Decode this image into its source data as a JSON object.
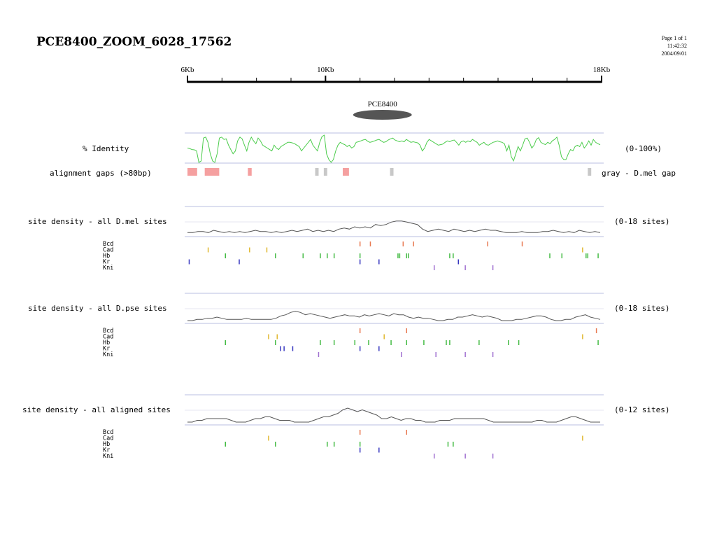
{
  "header": {
    "title": "PCE8400_ZOOM_6028_17562",
    "page": "Page 1 of 1",
    "time": "11:42:32",
    "date": "2004/09/01"
  },
  "scale": {
    "start_kb": 6,
    "end_kb": 18,
    "labels": [
      "6Kb",
      "10Kb",
      "18Kb"
    ],
    "label_positions_kb": [
      6,
      10,
      18
    ],
    "minor_ticks_kb": [
      7,
      8,
      9,
      10,
      11,
      12,
      13,
      14,
      15,
      16,
      17
    ]
  },
  "gene": {
    "name": "PCE8400",
    "start_kb": 10.8,
    "end_kb": 12.5
  },
  "identity": {
    "label": "% Identity",
    "range": "(0-100%)",
    "values": [
      50,
      48,
      45,
      44,
      40,
      0,
      5,
      85,
      88,
      70,
      30,
      5,
      0,
      30,
      85,
      88,
      80,
      82,
      60,
      45,
      30,
      40,
      75,
      88,
      82,
      60,
      40,
      70,
      88,
      75,
      65,
      85,
      75,
      60,
      55,
      50,
      45,
      40,
      60,
      50,
      45,
      55,
      60,
      65,
      70,
      70,
      68,
      65,
      60,
      55,
      40,
      50,
      60,
      70,
      80,
      60,
      50,
      40,
      70,
      90,
      95,
      30,
      10,
      0,
      10,
      40,
      60,
      70,
      65,
      62,
      55,
      60,
      50,
      55,
      70,
      72,
      75,
      78,
      80,
      74,
      70,
      72,
      75,
      78,
      80,
      75,
      70,
      72,
      78,
      82,
      85,
      78,
      75,
      72,
      75,
      72,
      80,
      75,
      70,
      72,
      70,
      68,
      60,
      40,
      50,
      70,
      80,
      75,
      70,
      65,
      60,
      62,
      64,
      70,
      75,
      72,
      76,
      78,
      70,
      60,
      72,
      75,
      70,
      75,
      72,
      80,
      75,
      70,
      60,
      65,
      70,
      62,
      60,
      65,
      70,
      72,
      75,
      72,
      70,
      65,
      40,
      60,
      20,
      5,
      30,
      55,
      40,
      60,
      82,
      85,
      70,
      50,
      60,
      80,
      86,
      70,
      65,
      62,
      70,
      65,
      75,
      80,
      88,
      60,
      20,
      10,
      10,
      30,
      45,
      40,
      55,
      60,
      55,
      70,
      50,
      60,
      75,
      60,
      80,
      70,
      65,
      62
    ],
    "color": "#4ccc4c"
  },
  "gaps": {
    "label": "alignment gaps (>80bp)",
    "legend": "gray - D.mel gap",
    "pink_color": "#f5a0a0",
    "gray_color": "#c8c8c8",
    "pink": [
      [
        6.0,
        6.28
      ],
      [
        6.5,
        6.75
      ],
      [
        6.75,
        6.92
      ],
      [
        7.75,
        7.86
      ],
      [
        10.5,
        10.68
      ]
    ],
    "gray": [
      [
        9.7,
        9.8
      ],
      [
        9.95,
        10.05
      ],
      [
        11.87,
        11.97
      ],
      [
        17.6,
        17.7
      ]
    ]
  },
  "panels": [
    {
      "label": "site density - all D.mel sites",
      "range": "(0-18 sites)",
      "line_color": "#555555",
      "values": [
        1,
        1,
        2,
        2,
        1,
        3,
        2,
        1,
        2,
        1,
        2,
        1,
        2,
        3,
        2,
        2,
        1,
        2,
        1,
        2,
        3,
        2,
        3,
        4,
        2,
        3,
        2,
        3,
        2,
        4,
        5,
        4,
        6,
        5,
        6,
        5,
        8,
        7,
        8,
        10,
        11,
        11,
        10,
        9,
        8,
        4,
        2,
        3,
        4,
        3,
        2,
        4,
        3,
        2,
        3,
        2,
        3,
        4,
        3,
        3,
        2,
        1,
        1,
        1,
        2,
        1,
        1,
        1,
        2,
        2,
        3,
        2,
        1,
        2,
        1,
        3,
        2,
        1,
        2,
        1
      ],
      "tracks": [
        {
          "name": "Bcd",
          "color": "#e87850",
          "pos": [
            11.0,
            11.3,
            12.25,
            12.55,
            14.7,
            15.7
          ]
        },
        {
          "name": "Cad",
          "color": "#e0b830",
          "pos": [
            6.6,
            7.8,
            8.3,
            17.45
          ]
        },
        {
          "name": "Hb",
          "color": "#44bb44",
          "pos": [
            7.1,
            8.55,
            9.35,
            9.85,
            10.05,
            10.25,
            11.0,
            12.1,
            12.15,
            12.35,
            12.4,
            13.6,
            13.7,
            16.5,
            16.85,
            17.55,
            17.6,
            17.9
          ]
        },
        {
          "name": "Kr",
          "color": "#3838c0",
          "pos": [
            6.05,
            7.5,
            11.0,
            11.55,
            13.85
          ]
        },
        {
          "name": "Kni",
          "color": "#a070d0",
          "pos": [
            13.15,
            14.05,
            14.85
          ]
        }
      ]
    },
    {
      "label": "site density - all D.pse sites",
      "range": "(0-18 sites)",
      "line_color": "#555555",
      "values": [
        0,
        0,
        1,
        1,
        2,
        2,
        3,
        2,
        1,
        1,
        1,
        1,
        2,
        1,
        1,
        1,
        1,
        1,
        2,
        4,
        5,
        7,
        8,
        7,
        5,
        6,
        5,
        4,
        3,
        2,
        3,
        4,
        5,
        4,
        4,
        3,
        5,
        4,
        5,
        6,
        5,
        4,
        6,
        5,
        5,
        3,
        2,
        3,
        2,
        2,
        1,
        0,
        0,
        1,
        1,
        3,
        3,
        4,
        5,
        4,
        3,
        4,
        3,
        2,
        0,
        0,
        0,
        1,
        1,
        2,
        3,
        4,
        4,
        3,
        1,
        0,
        0,
        1,
        1,
        3,
        4,
        5,
        3,
        2,
        1
      ],
      "tracks": [
        {
          "name": "Bcd",
          "color": "#e87850",
          "pos": [
            11.0,
            12.35,
            17.85
          ]
        },
        {
          "name": "Cad",
          "color": "#e0b830",
          "pos": [
            8.35,
            8.6,
            11.7,
            17.45
          ]
        },
        {
          "name": "Hb",
          "color": "#44bb44",
          "pos": [
            7.1,
            8.55,
            9.85,
            10.25,
            10.85,
            11.25,
            11.9,
            12.35,
            12.85,
            13.5,
            13.6,
            14.45,
            15.3,
            15.6,
            17.9
          ]
        },
        {
          "name": "Kr",
          "color": "#3838c0",
          "pos": [
            8.7,
            8.8,
            9.05,
            11.0,
            11.55
          ]
        },
        {
          "name": "Kni",
          "color": "#a070d0",
          "pos": [
            9.8,
            12.2,
            13.2,
            14.05,
            14.85
          ]
        }
      ]
    },
    {
      "label": "site density - all aligned sites",
      "range": "(0-12 sites)",
      "line_color": "#555555",
      "values": [
        0,
        0,
        1,
        1,
        2,
        2,
        2,
        2,
        2,
        1,
        0,
        0,
        0,
        1,
        2,
        2,
        3,
        3,
        2,
        1,
        1,
        1,
        0,
        0,
        0,
        0,
        1,
        2,
        3,
        3,
        4,
        5,
        7,
        8,
        7,
        6,
        7,
        6,
        5,
        4,
        2,
        2,
        3,
        2,
        1,
        2,
        2,
        1,
        1,
        0,
        0,
        0,
        1,
        1,
        1,
        2,
        2,
        2,
        2,
        2,
        2,
        2,
        1,
        0,
        0,
        0,
        0,
        0,
        0,
        0,
        0,
        0,
        1,
        1,
        0,
        0,
        0,
        1,
        2,
        3,
        3,
        2,
        1,
        0,
        0,
        0
      ],
      "tracks": [
        {
          "name": "Bcd",
          "color": "#e87850",
          "pos": [
            11.0,
            12.35
          ]
        },
        {
          "name": "Cad",
          "color": "#e0b830",
          "pos": [
            8.35,
            17.45
          ]
        },
        {
          "name": "Hb",
          "color": "#44bb44",
          "pos": [
            7.1,
            8.55,
            10.05,
            10.25,
            11.0,
            13.55,
            13.7
          ]
        },
        {
          "name": "Kr",
          "color": "#3838c0",
          "pos": [
            11.0,
            11.55
          ]
        },
        {
          "name": "Kni",
          "color": "#a070d0",
          "pos": [
            13.15,
            14.05,
            14.85
          ]
        }
      ]
    }
  ],
  "colors": {
    "frame_line": "#b8bfe0",
    "grid_line": "#e6e6f2",
    "scale_bar": "#000000",
    "gene_fill": "#555555"
  }
}
